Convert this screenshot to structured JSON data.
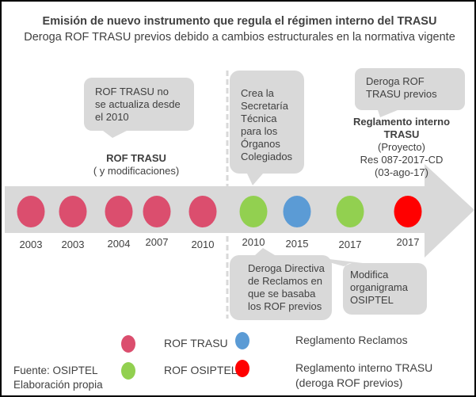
{
  "title": "Emisión de nuevo instrumento que regula el régimen interno del TRASU",
  "subtitle": "Deroga ROF TRASU previos debido  a cambios estructurales en la normativa vigente",
  "callouts": {
    "c1": "ROF TRASU no\nse actualiza desde\nel 2010",
    "c2": "Crea la\nSecretaría\nTécnica\npara los\nÓrganos\nColegiados",
    "c3": "Deroga ROF\nTRASU  previos",
    "c4": "Deroga Directiva\nde Reclamos en\nque se basaba\nlos ROF previos",
    "c5": "Modifica\norganigrama\nOSIPTEL"
  },
  "rof_label": {
    "title": "ROF TRASU",
    "sub": "( y modificaciones)"
  },
  "reglamento_label": {
    "title": "Reglamento interno\nTRASU",
    "sub": "(Proyecto)\nRes 087-2017-CD\n(03-ago-17)"
  },
  "events": [
    {
      "year": "2003",
      "type": "rof_trasu"
    },
    {
      "year": "2003",
      "type": "rof_trasu"
    },
    {
      "year": "2004",
      "type": "rof_trasu"
    },
    {
      "year": "2007",
      "type": "rof_trasu"
    },
    {
      "year": "2010",
      "type": "rof_trasu"
    },
    {
      "year": "2010",
      "type": "rof_osiptel"
    },
    {
      "year": "2015",
      "type": "reglamento_reclamos"
    },
    {
      "year": "2017",
      "type": "rof_osiptel"
    },
    {
      "year": "2017",
      "type": "reglamento_interno"
    }
  ],
  "colors": {
    "rof_trasu": "#db4e6e",
    "rof_osiptel": "#92d050",
    "reglamento_reclamos": "#5b9bd5",
    "reglamento_interno": "#ff0000",
    "arrow": "#d9d9d9",
    "callout": "#d9d9d9"
  },
  "legend": [
    {
      "type": "rof_trasu",
      "label": "ROF TRASU"
    },
    {
      "type": "rof_osiptel",
      "label": "ROF OSIPTEL"
    },
    {
      "type": "reglamento_reclamos",
      "label": "Reglamento Reclamos"
    },
    {
      "type": "reglamento_interno",
      "label": "Reglamento interno TRASU\n(deroga ROF previos)"
    }
  ],
  "source": "Fuente: OSIPTEL\nElaboración propia"
}
